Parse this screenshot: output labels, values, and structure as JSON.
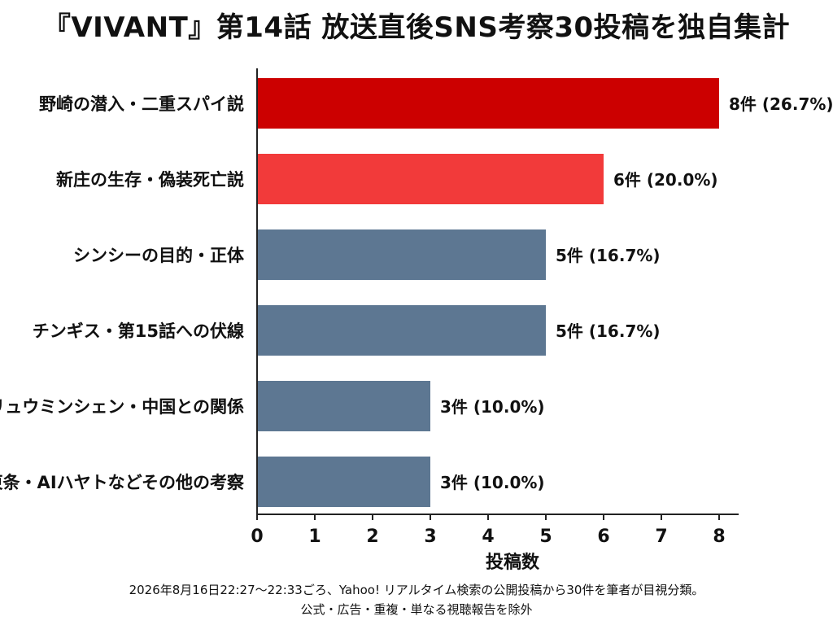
{
  "chart_data": {
    "type": "bar",
    "orientation": "horizontal",
    "title": "『VIVANT』第14話 放送直後SNS考察30投稿を独自集計",
    "xlabel": "投稿数",
    "ylabel": "",
    "xlim": [
      0,
      8
    ],
    "xticks": [
      "0",
      "1",
      "2",
      "3",
      "4",
      "5",
      "6",
      "7",
      "8"
    ],
    "grid": false,
    "categories": [
      "野崎の潜入・二重スパイ説",
      "新庄の生存・偽装死亡説",
      "シンシーの目的・正体",
      "チンギス・第15話への伏線",
      "リュウミンシェン・中国との関係",
      "東条・AIハヤトなどその他の考察"
    ],
    "values": [
      8,
      6,
      5,
      5,
      3,
      3
    ],
    "value_labels": [
      "8件 (26.7%)",
      "6件 (20.0%)",
      "5件 (16.7%)",
      "5件 (16.7%)",
      "3件 (10.0%)",
      "3件 (10.0%)"
    ],
    "bar_colors": [
      "#cc0000",
      "#f23a3a",
      "#5d7792",
      "#5d7792",
      "#5d7792",
      "#5d7792"
    ],
    "axis_color": "#222222"
  },
  "footnote": {
    "line1": "2026年8月16日22:27〜22:33ごろ、Yahoo! リアルタイム検索の公開投稿から30件を筆者が目視分類。",
    "line2": "公式・広告・重複・単なる視聴報告を除外"
  }
}
